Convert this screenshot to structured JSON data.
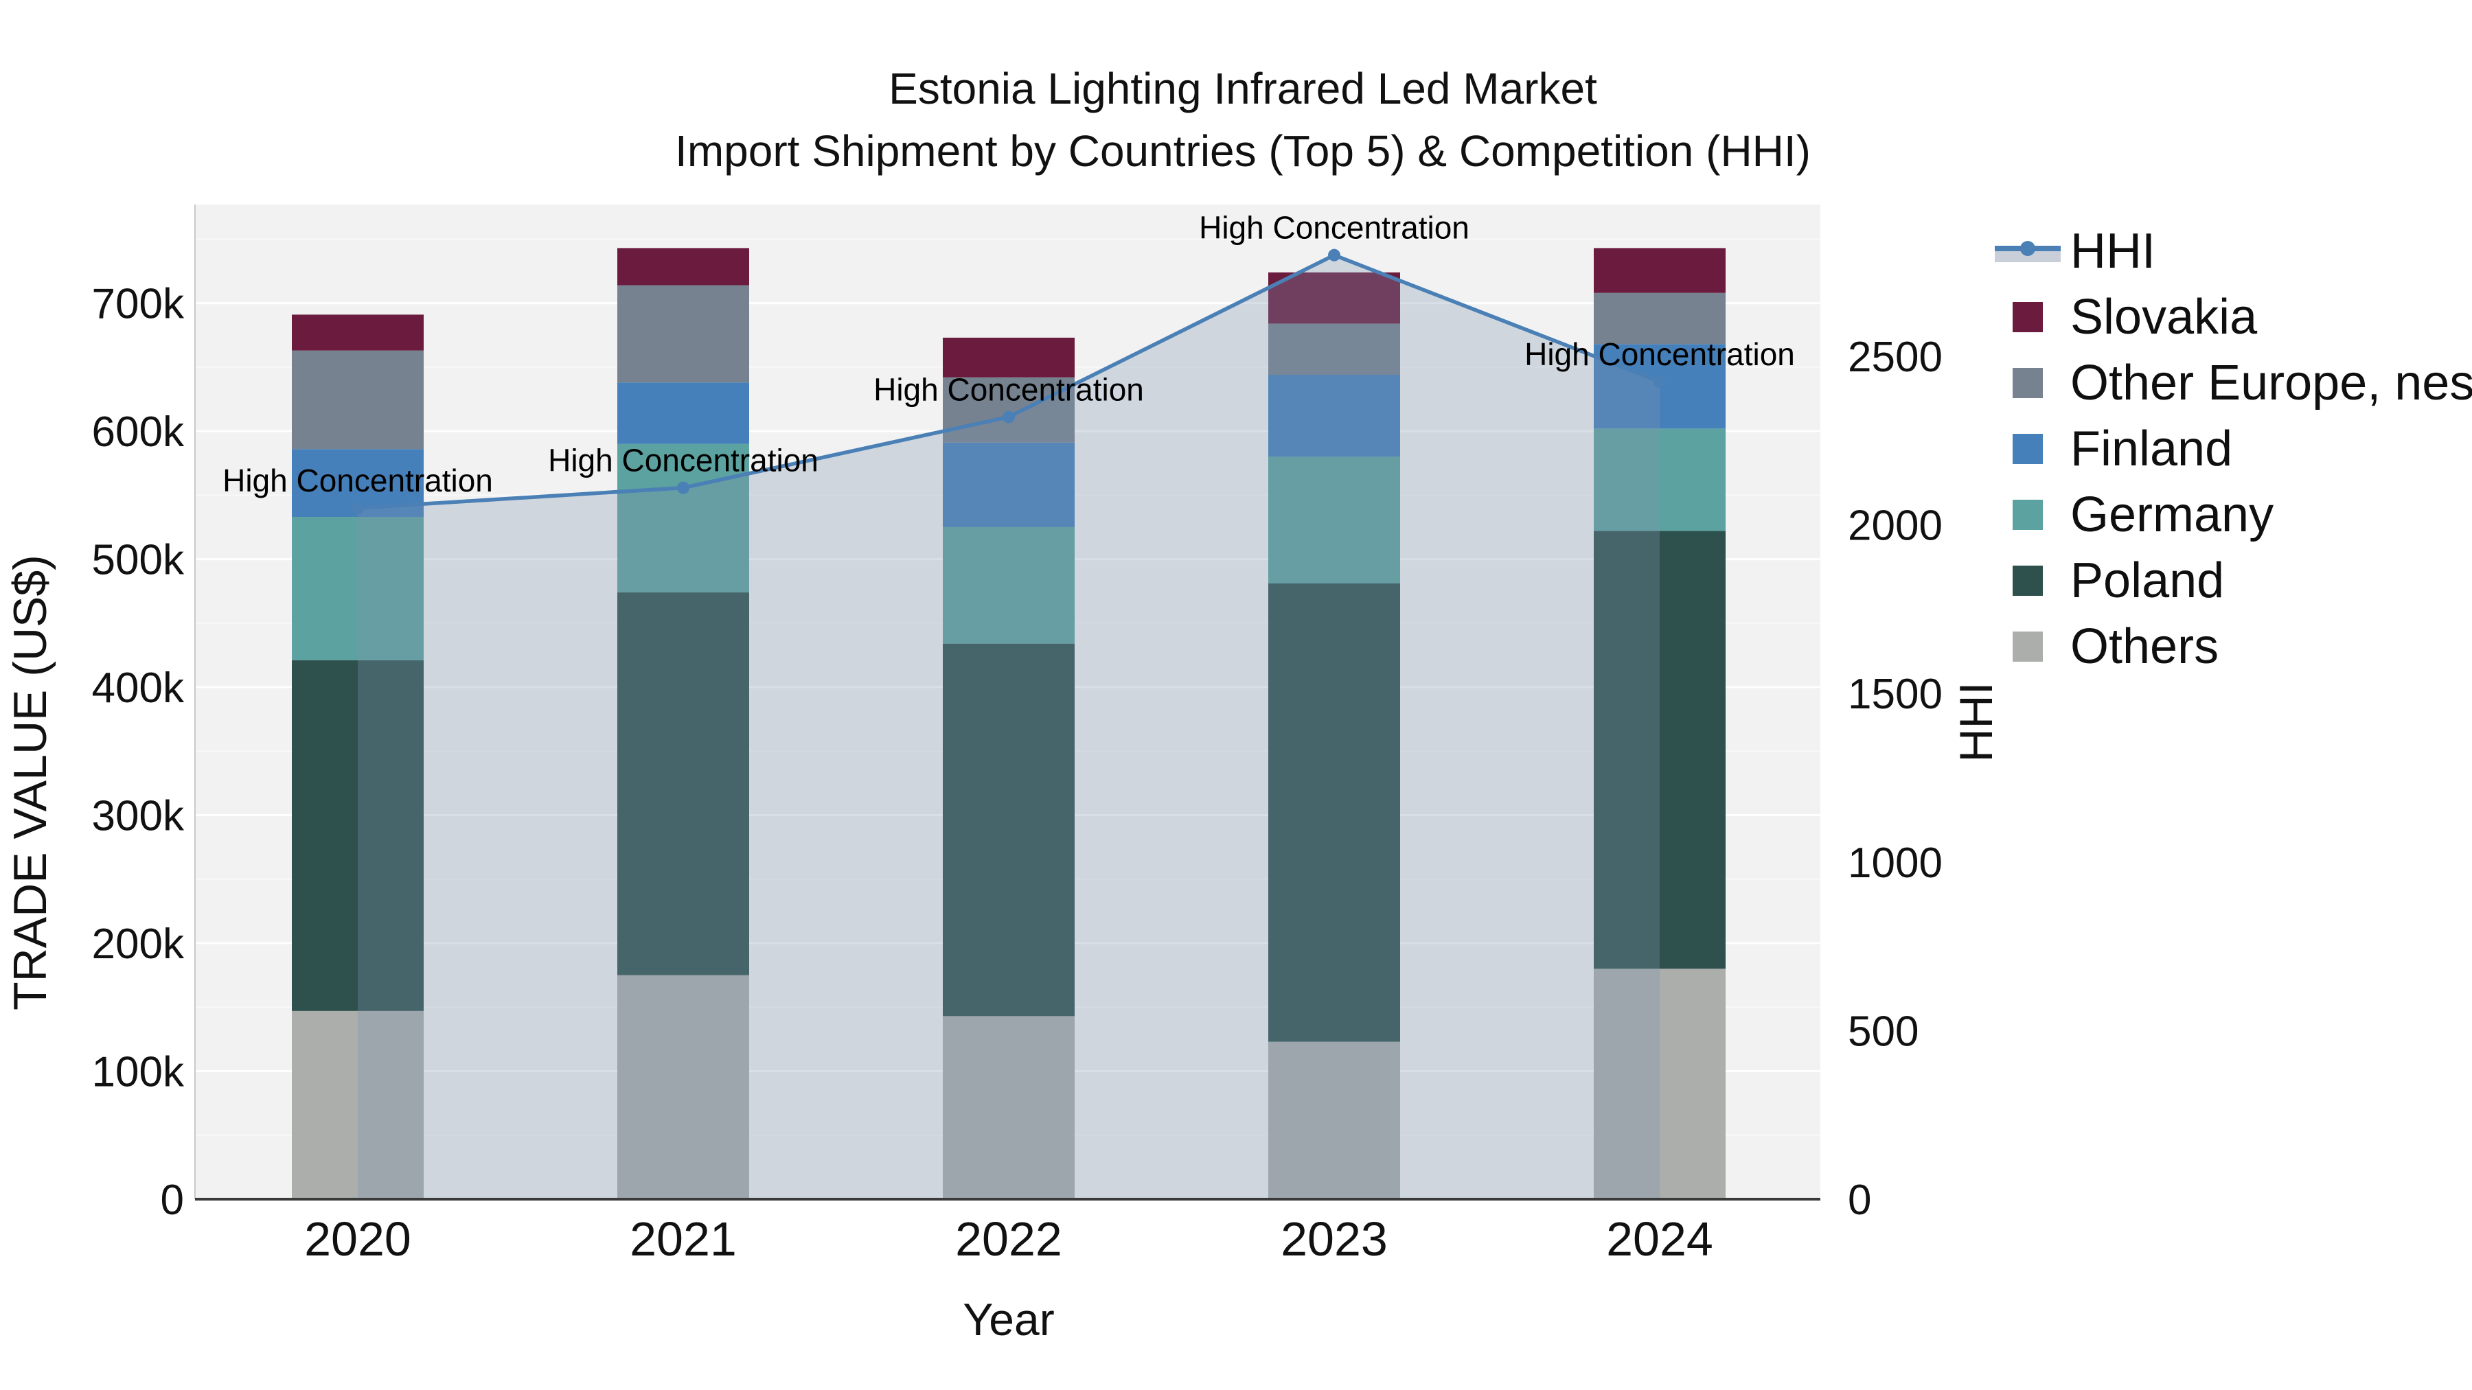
{
  "title": {
    "line1": "Estonia Lighting Infrared Led Market",
    "line2": "Import Shipment by Countries (Top 5) & Competition (HHI)"
  },
  "chart_data": {
    "type": "bar",
    "subtype": "stacked-bars-with-hhi-line-and-area",
    "categories": [
      "2020",
      "2021",
      "2022",
      "2023",
      "2024"
    ],
    "xlabel": "Year",
    "values_are_thousands_usd": true,
    "series": [
      {
        "name": "Others",
        "color": "#ABAEAB",
        "values": [
          147,
          175,
          143,
          123,
          180
        ]
      },
      {
        "name": "Poland",
        "color": "#2E514D",
        "values": [
          274,
          299,
          291,
          358,
          342
        ]
      },
      {
        "name": "Germany",
        "color": "#5CA2A0",
        "values": [
          112,
          116,
          91,
          99,
          80
        ]
      },
      {
        "name": "Finland",
        "color": "#4580BA",
        "values": [
          53,
          48,
          66,
          64,
          66
        ]
      },
      {
        "name": "Other Europe, nes",
        "color": "#76828F",
        "values": [
          77,
          76,
          51,
          40,
          40
        ]
      },
      {
        "name": "Slovakia",
        "color": "#6B1B3D",
        "values": [
          28,
          29,
          31,
          40,
          35
        ]
      }
    ],
    "hhi": {
      "name": "HHI",
      "values": [
        2050,
        2110,
        2320,
        2800,
        2425
      ],
      "line_color": "#4A80B5",
      "area_color": "#7E95AF",
      "area_opacity": 0.3,
      "marker": "circle"
    },
    "annotations": [
      "High Concentration",
      "High Concentration",
      "High Concentration",
      "High Concentration",
      "High Concentration"
    ],
    "left_axis": {
      "title": "TRADE VALUE (US$)",
      "tick_labels": [
        "0",
        "100k",
        "200k",
        "300k",
        "400k",
        "500k",
        "600k",
        "700k"
      ],
      "tick_values_k": [
        0,
        100,
        200,
        300,
        400,
        500,
        600,
        700
      ],
      "max_k": 777
    },
    "right_axis": {
      "title": "HHI",
      "tick_labels": [
        "0",
        "500",
        "1000",
        "1500",
        "2000",
        "2500"
      ],
      "tick_values": [
        0,
        500,
        1000,
        1500,
        2000,
        2500
      ],
      "max": 2950
    },
    "legend": {
      "position": "right",
      "entries": [
        {
          "label": "HHI",
          "type": "line",
          "color": "#4A80B5"
        },
        {
          "label": "Slovakia",
          "type": "swatch",
          "color": "#6B1B3D"
        },
        {
          "label": "Other Europe, nes",
          "type": "swatch",
          "color": "#76828F"
        },
        {
          "label": "Finland",
          "type": "swatch",
          "color": "#4580BA"
        },
        {
          "label": "Germany",
          "type": "swatch",
          "color": "#5CA2A0"
        },
        {
          "label": "Poland",
          "type": "swatch",
          "color": "#2E514D"
        },
        {
          "label": "Others",
          "type": "swatch",
          "color": "#ABAEAB"
        }
      ]
    },
    "plot_background": "#F2F2F2",
    "grid": "horizontal, white, major 100k / minor 50k",
    "axis_line_color": "#3A3A3A",
    "text_color": "#111111"
  }
}
